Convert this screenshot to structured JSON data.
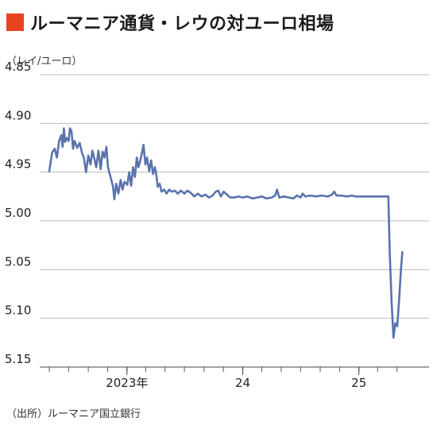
{
  "title": "ルーマニア通貨・レウの対ユーロ相場",
  "unit_label": "（レイ/ユーロ）",
  "source": "（出所）ルーマニア国立銀行",
  "colors": {
    "title_mark": "#e8441f",
    "line": "#5a73ad",
    "grid": "#bbbbbb"
  },
  "chart_data": {
    "type": "line",
    "title": "ルーマニア通貨・レウの対ユーロ相場",
    "ylabel": "（レイ/ユーロ）",
    "y_inverted": true,
    "ylim": [
      4.85,
      5.15
    ],
    "yticks": [
      "4.85",
      "4.90",
      "4.95",
      "5.00",
      "5.05",
      "5.10",
      "5.15"
    ],
    "grid": true,
    "xlim": [
      "2022-05-01",
      "2025-06-01"
    ],
    "xtick_labels": [
      {
        "date": "2023-01-01",
        "label": "2023年"
      },
      {
        "date": "2024-01-01",
        "label": "24"
      },
      {
        "date": "2025-01-01",
        "label": "25"
      }
    ],
    "x_minor_ticks": [
      "2022-05-01",
      "2022-07-01",
      "2022-09-01",
      "2022-11-01",
      "2023-01-01",
      "2023-03-01",
      "2023-05-01",
      "2023-07-01",
      "2023-09-01",
      "2023-11-01",
      "2024-01-01",
      "2024-03-01",
      "2024-05-01",
      "2024-07-01",
      "2024-09-01",
      "2024-11-01",
      "2025-01-01",
      "2025-03-01",
      "2025-05-01"
    ],
    "series": [
      {
        "points": [
          [
            "2022-05-01",
            4.949
          ],
          [
            "2022-05-10",
            4.93
          ],
          [
            "2022-05-18",
            4.926
          ],
          [
            "2022-05-25",
            4.935
          ],
          [
            "2022-06-01",
            4.918
          ],
          [
            "2022-06-08",
            4.912
          ],
          [
            "2022-06-12",
            4.924
          ],
          [
            "2022-06-16",
            4.905
          ],
          [
            "2022-06-20",
            4.919
          ],
          [
            "2022-06-25",
            4.915
          ],
          [
            "2022-07-01",
            4.918
          ],
          [
            "2022-07-05",
            4.905
          ],
          [
            "2022-07-10",
            4.908
          ],
          [
            "2022-07-15",
            4.926
          ],
          [
            "2022-07-20",
            4.918
          ],
          [
            "2022-07-28",
            4.925
          ],
          [
            "2022-08-05",
            4.92
          ],
          [
            "2022-08-12",
            4.93
          ],
          [
            "2022-08-18",
            4.935
          ],
          [
            "2022-08-25",
            4.95
          ],
          [
            "2022-09-01",
            4.933
          ],
          [
            "2022-09-08",
            4.942
          ],
          [
            "2022-09-14",
            4.928
          ],
          [
            "2022-09-20",
            4.936
          ],
          [
            "2022-09-26",
            4.945
          ],
          [
            "2022-10-03",
            4.928
          ],
          [
            "2022-10-10",
            4.947
          ],
          [
            "2022-10-16",
            4.929
          ],
          [
            "2022-10-22",
            4.935
          ],
          [
            "2022-10-28",
            4.924
          ],
          [
            "2022-11-02",
            4.945
          ],
          [
            "2022-11-10",
            4.955
          ],
          [
            "2022-11-18",
            4.965
          ],
          [
            "2022-11-22",
            4.978
          ],
          [
            "2022-11-28",
            4.962
          ],
          [
            "2022-12-05",
            4.972
          ],
          [
            "2022-12-12",
            4.958
          ],
          [
            "2022-12-18",
            4.968
          ],
          [
            "2022-12-24",
            4.96
          ],
          [
            "2023-01-02",
            4.963
          ],
          [
            "2023-01-08",
            4.95
          ],
          [
            "2023-01-14",
            4.964
          ],
          [
            "2023-01-20",
            4.945
          ],
          [
            "2023-01-26",
            4.955
          ],
          [
            "2023-02-01",
            4.935
          ],
          [
            "2023-02-06",
            4.945
          ],
          [
            "2023-02-12",
            4.938
          ],
          [
            "2023-02-18",
            4.929
          ],
          [
            "2023-02-22",
            4.922
          ],
          [
            "2023-02-28",
            4.942
          ],
          [
            "2023-03-05",
            4.935
          ],
          [
            "2023-03-12",
            4.949
          ],
          [
            "2023-03-18",
            4.938
          ],
          [
            "2023-03-24",
            4.952
          ],
          [
            "2023-03-30",
            4.945
          ],
          [
            "2023-04-03",
            4.952
          ],
          [
            "2023-04-08",
            4.965
          ],
          [
            "2023-04-14",
            4.962
          ],
          [
            "2023-04-20",
            4.97
          ],
          [
            "2023-04-28",
            4.968
          ],
          [
            "2023-05-06",
            4.972
          ],
          [
            "2023-05-14",
            4.968
          ],
          [
            "2023-05-22",
            4.97
          ],
          [
            "2023-06-01",
            4.969
          ],
          [
            "2023-06-10",
            4.972
          ],
          [
            "2023-06-20",
            4.969
          ],
          [
            "2023-07-01",
            4.972
          ],
          [
            "2023-07-10",
            4.969
          ],
          [
            "2023-07-20",
            4.971
          ],
          [
            "2023-08-01",
            4.975
          ],
          [
            "2023-08-12",
            4.972
          ],
          [
            "2023-08-24",
            4.975
          ],
          [
            "2023-09-05",
            4.973
          ],
          [
            "2023-09-16",
            4.976
          ],
          [
            "2023-09-28",
            4.974
          ],
          [
            "2023-10-08",
            4.97
          ],
          [
            "2023-10-16",
            4.969
          ],
          [
            "2023-10-24",
            4.975
          ],
          [
            "2023-11-02",
            4.97
          ],
          [
            "2023-11-12",
            4.973
          ],
          [
            "2023-11-22",
            4.976
          ],
          [
            "2023-12-05",
            4.976
          ],
          [
            "2023-12-18",
            4.975
          ],
          [
            "2024-01-01",
            4.976
          ],
          [
            "2024-01-15",
            4.975
          ],
          [
            "2024-02-01",
            4.977
          ],
          [
            "2024-02-16",
            4.976
          ],
          [
            "2024-03-01",
            4.975
          ],
          [
            "2024-03-15",
            4.977
          ],
          [
            "2024-04-01",
            4.976
          ],
          [
            "2024-04-12",
            4.974
          ],
          [
            "2024-04-18",
            4.968
          ],
          [
            "2024-04-25",
            4.976
          ],
          [
            "2024-05-10",
            4.975
          ],
          [
            "2024-05-25",
            4.976
          ],
          [
            "2024-06-08",
            4.977
          ],
          [
            "2024-06-20",
            4.974
          ],
          [
            "2024-07-01",
            4.976
          ],
          [
            "2024-07-08",
            4.972
          ],
          [
            "2024-07-16",
            4.975
          ],
          [
            "2024-08-01",
            4.974
          ],
          [
            "2024-08-20",
            4.975
          ],
          [
            "2024-09-05",
            4.974
          ],
          [
            "2024-09-25",
            4.975
          ],
          [
            "2024-10-08",
            4.973
          ],
          [
            "2024-10-15",
            4.97
          ],
          [
            "2024-10-22",
            4.974
          ],
          [
            "2024-11-05",
            4.974
          ],
          [
            "2024-11-25",
            4.975
          ],
          [
            "2024-12-10",
            4.974
          ],
          [
            "2024-12-20",
            4.975
          ],
          [
            "2025-01-05",
            4.975
          ],
          [
            "2025-01-20",
            4.975
          ],
          [
            "2025-02-01",
            4.975
          ],
          [
            "2025-02-18",
            4.975
          ],
          [
            "2025-03-01",
            4.975
          ],
          [
            "2025-03-08",
            4.975
          ],
          [
            "2025-04-04",
            4.975
          ],
          [
            "2025-04-08",
            5.03
          ],
          [
            "2025-04-14",
            5.082
          ],
          [
            "2025-04-20",
            5.12
          ],
          [
            "2025-04-26",
            5.105
          ],
          [
            "2025-05-02",
            5.108
          ],
          [
            "2025-05-08",
            5.08
          ],
          [
            "2025-05-14",
            5.048
          ],
          [
            "2025-05-18",
            5.032
          ]
        ]
      }
    ]
  }
}
